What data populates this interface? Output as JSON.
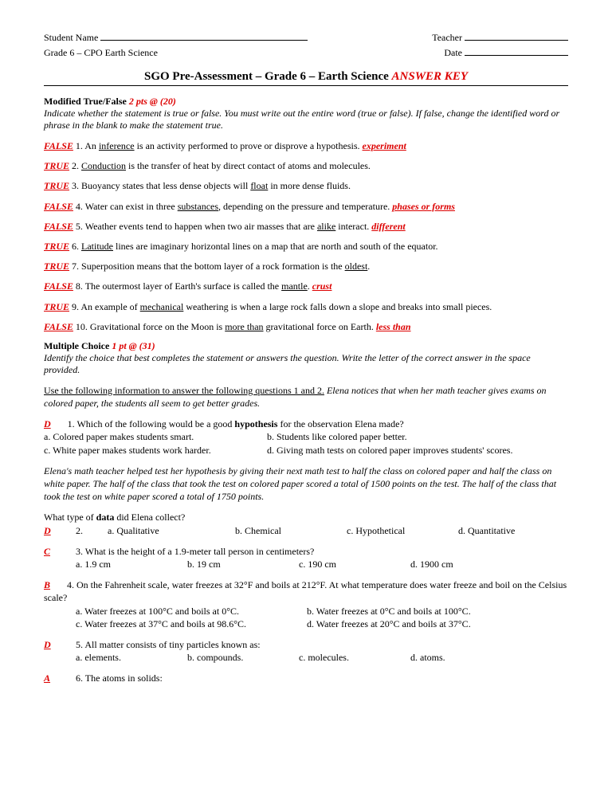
{
  "header": {
    "student_name_label": "Student Name",
    "teacher_label": "Teacher",
    "course": "Grade 6 – CPO Earth Science",
    "date_label": "Date"
  },
  "title": {
    "main": "SGO Pre-Assessment – Grade 6 – Earth Science ",
    "key": "ANSWER KEY"
  },
  "tf_section": {
    "label": "Modified True/False ",
    "points": "2 pts @ (20)",
    "instructions": "Indicate whether the statement is true or false.  You must write out the entire word (true or false).  If false, change the identified word or phrase in the blank to make the statement true."
  },
  "tf": [
    {
      "ans": "FALSE",
      "num": "1.",
      "pre": "  An ",
      "ul": "inference",
      "post": " is an activity performed to prove or disprove a hypothesis. ",
      "corr": "experiment"
    },
    {
      "ans": "TRUE",
      "num": "2.",
      "pre": "  ",
      "ul": "Conduction",
      "post": " is the transfer of heat by direct contact of atoms and molecules.",
      "corr": ""
    },
    {
      "ans": "TRUE",
      "num": "3.",
      "pre": "  Buoyancy states that less dense objects will ",
      "ul": "float",
      "post": " in more dense fluids.",
      "corr": ""
    },
    {
      "ans": "FALSE",
      "num": "4.",
      "pre": "  Water can exist in three ",
      "ul": "substances",
      "post": ", depending on the pressure and temperature. ",
      "corr": "phases or forms"
    },
    {
      "ans": "FALSE",
      "num": "5.",
      "pre": "  Weather events tend to happen when two air masses that are ",
      "ul": "alike",
      "post": " interact. ",
      "corr": "different"
    },
    {
      "ans": "TRUE",
      "num": "6.",
      "pre": "  ",
      "ul": "Latitude",
      "post": " lines are imaginary horizontal lines on a map that are north and south of the equator.",
      "corr": ""
    },
    {
      "ans": "TRUE",
      "num": "7.",
      "pre": "  Superposition means that the bottom layer of a rock formation is the ",
      "ul": "oldest",
      "post": ".",
      "corr": ""
    },
    {
      "ans": "FALSE",
      "num": "8.",
      "pre": "  The outermost layer of Earth's surface is called the ",
      "ul": "mantle",
      "post": ". ",
      "corr": "crust"
    },
    {
      "ans": "TRUE",
      "num": "9.",
      "pre": "  An example of ",
      "ul": "mechanical",
      "post": " weathering is when a large rock falls down a slope and breaks into small pieces.",
      "corr": ""
    },
    {
      "ans": "FALSE",
      "num": "10.",
      "pre": "  Gravitational force on the Moon is ",
      "ul": "more than",
      "post": " gravitational force on Earth. ",
      "corr": "less than"
    }
  ],
  "mc_section": {
    "label": "Multiple Choice  ",
    "points": "1 pt @ (31)",
    "instructions": "Identify the choice that best completes the statement or answers the question.  Write the letter of the correct answer in the space provided."
  },
  "context1": {
    "lead": "Use the following information to answer the following questions 1 and 2.",
    "text": "  Elena notices that when her math teacher gives exams on colored paper, the students all seem to get better grades."
  },
  "q1": {
    "ans": "D",
    "num": "1.",
    "text_pre": "  Which of the following would be a good ",
    "bold": "hypothesis",
    "text_post": " for the observation Elena made?",
    "a": "a. Colored paper makes students smart.",
    "b": "b. Students like colored paper better.",
    "c": "c. White paper makes students work harder.",
    "d": "d. Giving math tests on colored paper improves students' scores."
  },
  "context2": "Elena's math teacher helped test her hypothesis by giving their next math test to half the class on colored paper and half the class on white paper.  The half of the class that took the test on colored paper scored a total of 1500 points on the test. The half of the class that took the test on white paper scored a total of 1750 points.",
  "q2": {
    "lead_pre": "What type of ",
    "lead_bold": "data",
    "lead_post": " did Elena collect?",
    "ans": "D",
    "num": "2.",
    "a": "a. Qualitative",
    "b": "b. Chemical",
    "c": "c. Hypothetical",
    "d": "d. Quantitative"
  },
  "q3": {
    "ans": "C",
    "num": "3.",
    "text": "  What is the height of a 1.9-meter tall person in centimeters?",
    "a": "a. 1.9 cm",
    "b": "b. 19 cm",
    "c": "c. 190 cm",
    "d": "d. 1900 cm"
  },
  "q4": {
    "ans": "B",
    "num": "4.",
    "text": "  On the Fahrenheit scale, water freezes at 32°F and boils at 212°F. At what temperature does water freeze and boil on the Celsius scale?",
    "a": "a. Water freezes at 100°C and boils at 0°C.",
    "b": "b. Water freezes at 0°C and boils at 100°C.",
    "c": "c. Water freezes at 37°C and boils at 98.6°C.",
    "d": "d. Water freezes at 20°C and boils at 37°C."
  },
  "q5": {
    "ans": "D",
    "num": "5.",
    "text": "  All matter consists of tiny particles known as:",
    "a": "a. elements.",
    "b": "b. compounds.",
    "c": "c. molecules.",
    "d": "d. atoms."
  },
  "q6": {
    "ans": "A",
    "num": "6.",
    "text": "  The atoms in solids:"
  }
}
